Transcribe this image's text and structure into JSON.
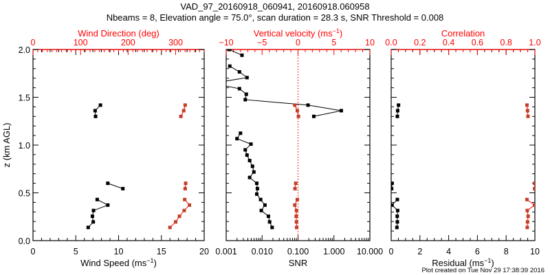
{
  "chart_data": {
    "type": "line",
    "title": "VAD_97_20160918_060941, 20160918.060958",
    "subtitle": "Nbeams = 8, Elevation angle = 75.0°, scan duration = 28.3 s, SNR Threshold = 0.008",
    "footer": "Plot created on Tue Nov 29 17:38:39 2016",
    "ylabel": "z (km AGL)",
    "ylim": [
      0,
      2
    ],
    "yticks": [
      "0.0",
      "0.5",
      "1.0",
      "1.5",
      "2.0"
    ],
    "colors": {
      "primary": "#000000",
      "secondary_line": "#ff0000",
      "secondary_marker": "#c0402a",
      "axis_secondary": "#ff0000"
    },
    "panels": [
      {
        "bottom": {
          "label": "Wind Speed (ms",
          "sup": "−1",
          "suffix": ")",
          "range": [
            0,
            20
          ],
          "scale": "linear",
          "ticks": [
            0,
            5,
            10,
            15,
            20
          ],
          "tick_labels": [
            "0",
            "5",
            "10",
            "15",
            "20"
          ],
          "minor": 1
        },
        "top": {
          "label": "Wind Direction (deg)",
          "sup": "",
          "suffix": "",
          "range": [
            0,
            360
          ],
          "scale": "linear",
          "ticks": [
            0,
            100,
            200,
            300
          ],
          "tick_labels": [
            "0",
            "100",
            "200",
            "300"
          ],
          "minor": 10
        },
        "series_bottom": {
          "name": "Wind Speed",
          "segments": [
            [
              [
                7.88,
                1.418
              ],
              [
                7.26,
                1.36
              ],
              [
                7.31,
                1.3
              ]
            ],
            [
              [
                8.74,
                0.6
              ],
              [
                10.5,
                0.544
              ]
            ],
            [
              [
                7.5,
                0.43
              ],
              [
                8.74,
                0.372
              ],
              [
                7.07,
                0.315
              ],
              [
                6.94,
                0.255
              ],
              [
                7.04,
                0.196
              ],
              [
                6.45,
                0.138
              ]
            ]
          ]
        },
        "series_top": {
          "name": "Wind Direction",
          "segments": [
            [
              [
                320,
                1.418
              ],
              [
                317,
                1.36
              ],
              [
                311,
                1.3
              ]
            ],
            [
              [
                321,
                0.6
              ],
              [
                320,
                0.544
              ]
            ],
            [
              [
                319,
                0.43
              ],
              [
                329,
                0.372
              ],
              [
                318,
                0.315
              ],
              [
                308,
                0.255
              ],
              [
                300,
                0.196
              ],
              [
                288,
                0.138
              ]
            ]
          ]
        }
      },
      {
        "bottom": {
          "label": "SNR",
          "sup": "",
          "suffix": "",
          "range": [
            0.001,
            10
          ],
          "scale": "log",
          "ticks": [
            0.001,
            0.01,
            0.1,
            1,
            10
          ],
          "tick_labels": [
            "0.001",
            "0.010",
            "0.100",
            "1.000",
            "10.000"
          ]
        },
        "top": {
          "label": "Vertical velocity (ms",
          "sup": "−1",
          "suffix": ")",
          "range": [
            -10,
            10
          ],
          "scale": "linear",
          "ticks": [
            -10,
            -5,
            0,
            5,
            10
          ],
          "tick_labels": [
            "−10",
            "−5",
            "0",
            "5",
            "10"
          ],
          "minor": 1
        },
        "reference_line": {
          "axis": "top",
          "value": 0
        },
        "series_bottom": {
          "name": "SNR",
          "segments": [
            [
              [
                0.0012,
                2.0
              ],
              [
                0.00275,
                1.94
              ]
            ],
            [
              [
                0.00126,
                1.826
              ],
              [
                0.00234,
                1.766
              ],
              [
                0.0038,
                1.706
              ],
              [
                0.0004,
                1.646
              ],
              [
                0.00234,
                1.59
              ],
              [
                0.00363,
                1.532
              ],
              [
                0.0034,
                1.475
              ],
              [
                0.19,
                1.418
              ],
              [
                1.6,
                1.36
              ],
              [
                0.275,
                1.3
              ]
            ],
            [
              [
                0.0025,
                1.124
              ],
              [
                0.002,
                1.067
              ],
              [
                0.0049,
                1.01
              ],
              [
                0.0034,
                0.95
              ],
              [
                0.0038,
                0.895
              ],
              [
                0.0045,
                0.838
              ],
              [
                0.0054,
                0.778
              ],
              [
                0.0059,
                0.718
              ],
              [
                0.0045,
                0.661
              ],
              [
                0.0071,
                0.6
              ],
              [
                0.0074,
                0.544
              ],
              [
                0.0071,
                0.487
              ],
              [
                0.0091,
                0.43
              ],
              [
                0.012,
                0.372
              ],
              [
                0.0095,
                0.315
              ],
              [
                0.015,
                0.255
              ],
              [
                0.0162,
                0.196
              ],
              [
                0.019,
                0.138
              ]
            ]
          ]
        },
        "series_top": {
          "name": "Vertical velocity",
          "segments": [
            [
              [
                -0.45,
                1.418
              ],
              [
                -0.1,
                1.36
              ],
              [
                0.06,
                1.3
              ]
            ],
            [
              [
                -0.32,
                0.6
              ],
              [
                -0.42,
                0.544
              ]
            ],
            [
              [
                -0.1,
                0.43
              ],
              [
                -0.45,
                0.372
              ],
              [
                -0.22,
                0.315
              ],
              [
                -0.26,
                0.255
              ],
              [
                -0.22,
                0.196
              ],
              [
                -0.19,
                0.138
              ]
            ]
          ]
        }
      },
      {
        "bottom": {
          "label": "Residual (ms",
          "sup": "−1",
          "suffix": ")",
          "range": [
            0,
            10
          ],
          "scale": "linear",
          "ticks": [
            0,
            2,
            4,
            6,
            8,
            10
          ],
          "tick_labels": [
            "0",
            "2",
            "4",
            "6",
            "8",
            "10"
          ],
          "minor": 0.5
        },
        "top": {
          "label": "Correlation",
          "sup": "",
          "suffix": "",
          "range": [
            0,
            1
          ],
          "scale": "linear",
          "ticks": [
            0,
            0.2,
            0.4,
            0.6,
            0.8,
            1.0
          ],
          "tick_labels": [
            "0.0",
            "0.2",
            "0.4",
            "0.6",
            "0.8",
            "1.0"
          ],
          "minor": 0.05
        },
        "series_bottom": {
          "name": "Residual",
          "segments": [
            [
              [
                0.51,
                1.418
              ],
              [
                0.45,
                1.36
              ],
              [
                0.43,
                1.3
              ]
            ],
            [
              [
                0.06,
                0.6
              ],
              [
                0.03,
                0.544
              ]
            ],
            [
              [
                0.43,
                0.43
              ],
              [
                0.06,
                0.372
              ],
              [
                0.45,
                0.315
              ],
              [
                0.42,
                0.255
              ],
              [
                0.43,
                0.196
              ],
              [
                0.4,
                0.138
              ]
            ]
          ]
        },
        "series_top": {
          "name": "Correlation",
          "segments": [
            [
              [
                0.945,
                1.418
              ],
              [
                0.949,
                1.36
              ],
              [
                0.952,
                1.3
              ]
            ],
            [
              [
                0.998,
                0.6
              ],
              [
                0.998,
                0.544
              ]
            ],
            [
              [
                0.945,
                0.43
              ],
              [
                0.998,
                0.372
              ],
              [
                0.947,
                0.315
              ],
              [
                0.953,
                0.255
              ],
              [
                0.949,
                0.196
              ],
              [
                0.947,
                0.138
              ]
            ]
          ]
        }
      }
    ]
  }
}
